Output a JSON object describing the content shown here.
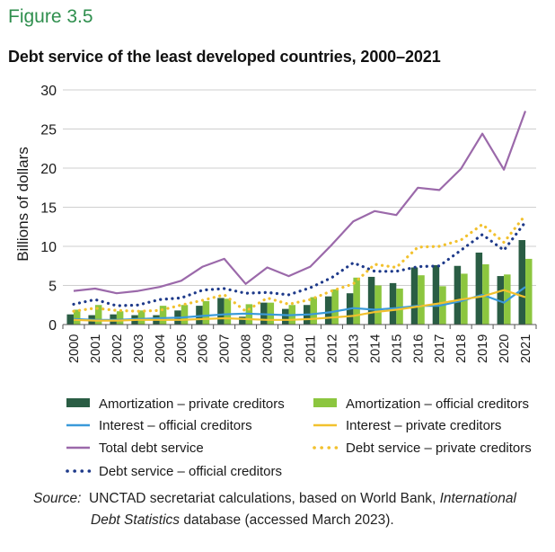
{
  "figure_label": "Figure 3.5",
  "source": {
    "label": "Source:",
    "text1": "UNCTAD secretariat calculations, based on World Bank,",
    "italic1": "International",
    "italic2": "Debt Statistics",
    "text2": "database (accessed March 2023)."
  },
  "colors": {
    "dark_green": "#2a5d44",
    "light_green": "#8cc63f",
    "blue": "#3a9ad9",
    "yellow": "#f2c12e",
    "purple": "#9b69aa",
    "navy": "#1e3a8a",
    "title_green": "#2f8f4e"
  },
  "chart_data": {
    "type": "bar",
    "title": "Debt service of the least developed countries, 2000–2021",
    "ylabel": "Billions of dollars",
    "xlabel": "",
    "ylim": [
      0,
      30
    ],
    "yticks": [
      0,
      5,
      10,
      15,
      20,
      25,
      30
    ],
    "grid": true,
    "legend_position": "bottom",
    "categories": [
      "2000",
      "2001",
      "2002",
      "2003",
      "2004",
      "2005",
      "2006",
      "2007",
      "2008",
      "2009",
      "2010",
      "2011",
      "2012",
      "2013",
      "2014",
      "2015",
      "2016",
      "2017",
      "2018",
      "2019",
      "2020",
      "2021"
    ],
    "bar_series": [
      {
        "name": "Amortization – private creditors",
        "color": "#2a5d44",
        "values": [
          1.3,
          1.2,
          1.3,
          1.2,
          1.2,
          1.8,
          2.4,
          3.4,
          1.0,
          2.8,
          2.0,
          2.5,
          3.6,
          4.0,
          6.1,
          5.3,
          7.3,
          7.6,
          7.5,
          9.2,
          6.2,
          10.8
        ]
      },
      {
        "name": "Amortization – official creditors",
        "color": "#8cc63f",
        "values": [
          1.9,
          2.5,
          1.7,
          1.8,
          2.4,
          2.5,
          3.0,
          3.3,
          2.6,
          2.8,
          2.5,
          3.5,
          4.5,
          6.0,
          5.0,
          4.6,
          6.3,
          4.9,
          6.5,
          7.7,
          6.4,
          8.4
        ]
      }
    ],
    "line_series": [
      {
        "name": "Interest – official creditors",
        "color": "#3a9ad9",
        "style": "solid",
        "values": [
          0.7,
          0.6,
          0.6,
          0.7,
          0.8,
          0.9,
          1.1,
          1.3,
          1.4,
          1.3,
          1.2,
          1.3,
          1.6,
          2.1,
          1.9,
          2.1,
          2.4,
          2.4,
          3.0,
          3.8,
          2.8,
          4.8
        ]
      },
      {
        "name": "Interest – private creditors",
        "color": "#f2c12e",
        "style": "solid",
        "values": [
          0.6,
          0.5,
          0.5,
          0.6,
          0.6,
          0.6,
          0.7,
          0.8,
          0.7,
          0.6,
          0.6,
          0.7,
          0.9,
          1.1,
          1.6,
          1.9,
          2.3,
          2.7,
          3.2,
          3.6,
          4.4,
          3.5
        ]
      },
      {
        "name": "Total debt service",
        "color": "#9b69aa",
        "style": "solid",
        "values": [
          4.3,
          4.6,
          4.0,
          4.3,
          4.8,
          5.6,
          7.4,
          8.4,
          5.2,
          7.3,
          6.2,
          7.4,
          10.2,
          13.2,
          14.5,
          14.0,
          17.5,
          17.2,
          19.9,
          24.4,
          19.8,
          27.3
        ]
      },
      {
        "name": "Debt service – private creditors",
        "color": "#f2c12e",
        "style": "dotted",
        "values": [
          1.7,
          2.1,
          1.8,
          1.7,
          1.8,
          2.5,
          3.1,
          3.8,
          1.7,
          3.4,
          2.6,
          3.2,
          4.3,
          5.2,
          7.7,
          7.3,
          9.9,
          10.0,
          10.8,
          12.8,
          10.5,
          14.0
        ]
      },
      {
        "name": "Debt service – official creditors",
        "color": "#1e3a8a",
        "style": "dotted",
        "values": [
          2.6,
          3.2,
          2.4,
          2.5,
          3.2,
          3.4,
          4.4,
          4.6,
          4.0,
          4.1,
          3.8,
          4.7,
          6.0,
          7.9,
          6.8,
          6.8,
          7.4,
          7.5,
          9.5,
          11.5,
          9.5,
          13.1
        ]
      }
    ],
    "legend": [
      {
        "label": "Amortization – private creditors",
        "marker": "bar",
        "color": "#2a5d44"
      },
      {
        "label": "Amortization – official creditors",
        "marker": "bar",
        "color": "#8cc63f"
      },
      {
        "label": "Interest – official creditors",
        "marker": "line",
        "color": "#3a9ad9"
      },
      {
        "label": "Interest – private creditors",
        "marker": "line",
        "color": "#f2c12e"
      },
      {
        "label": "Total debt service",
        "marker": "line",
        "color": "#9b69aa"
      },
      {
        "label": "Debt service – private creditors",
        "marker": "dots",
        "color": "#f2c12e"
      },
      {
        "label": "Debt service – official creditors",
        "marker": "dots",
        "color": "#1e3a8a"
      }
    ]
  }
}
